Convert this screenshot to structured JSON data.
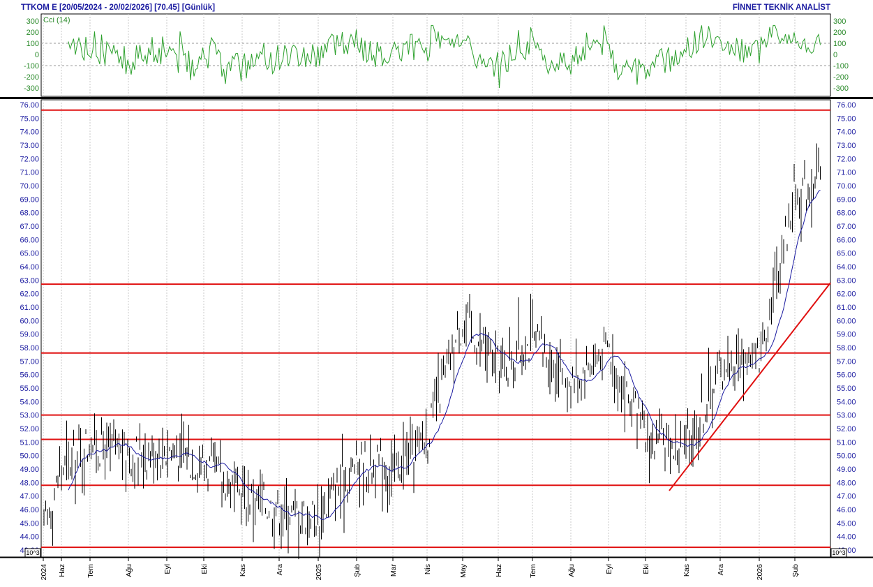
{
  "header": {
    "left": "TTKOM E  [20/05/2024 - 20/02/2026]  [70.45]  [Günlük]",
    "right": "FİNNET TEKNİK ANALİST"
  },
  "indicator": {
    "name": "Cci (14)",
    "color": "#2ca02c",
    "ticks": [
      "300",
      "200",
      "100",
      "0",
      "-100",
      "-200",
      "-300"
    ],
    "tick_values": [
      300,
      200,
      100,
      0,
      -100,
      -200,
      -300
    ],
    "dotted_levels": [
      100,
      -100
    ],
    "ylim": [
      -300,
      300
    ]
  },
  "price_axis": {
    "ticks": [
      "76.00",
      "75.00",
      "74.00",
      "73.00",
      "72.00",
      "71.00",
      "70.00",
      "69.00",
      "68.00",
      "67.00",
      "66.00",
      "65.00",
      "64.00",
      "63.00",
      "62.00",
      "61.00",
      "60.00",
      "59.00",
      "58.00",
      "57.00",
      "56.00",
      "55.00",
      "54.00",
      "53.00",
      "52.00",
      "51.00",
      "50.00",
      "49.00",
      "48.00",
      "47.00",
      "46.00",
      "45.00",
      "44.00",
      "43.00"
    ],
    "multiplier": "10^3"
  },
  "x_axis": {
    "labels": [
      "2024",
      "Haz",
      "Tem",
      "Ağu",
      "Eyl",
      "Eki",
      "Kas",
      "Ara",
      "2025",
      "Şub",
      "Mar",
      "Nis",
      "May",
      "Haz",
      "Tem",
      "Ağu",
      "Eyl",
      "Eki",
      "Kas",
      "Ara",
      "2026",
      "Şub"
    ]
  },
  "chart_data": {
    "type": "bar",
    "title": "TTKOM E  [20/05/2024 - 20/02/2026]  [70.45]  [Günlük]",
    "ylim": [
      43,
      76
    ],
    "last_close": 70.45,
    "horizontal_levels": [
      75.6,
      62.7,
      57.6,
      53.0,
      51.2,
      47.8,
      43.2
    ],
    "level_color": "#e01010",
    "trendline": {
      "from": {
        "date": "Eki 2025",
        "value": 47.4
      },
      "to": {
        "date": "Şub 2026",
        "value": 62.8
      }
    },
    "moving_average_color": "#1a1aa0",
    "price_path_months": [
      "May 2024",
      "Haz",
      "Tem",
      "Ağu",
      "Eyl",
      "Eki",
      "Kas",
      "Ara",
      "Oca 2025",
      "Şub",
      "Mar",
      "Nis",
      "May",
      "Haz",
      "Tem",
      "Ağu",
      "Eyl",
      "Eki",
      "Kas",
      "Ara",
      "Oca 2026",
      "Şub"
    ],
    "price_path_values": [
      44.5,
      49.0,
      51.0,
      50.0,
      50.5,
      49.5,
      47.0,
      46.0,
      45.5,
      49.5,
      49.0,
      51.5,
      60.0,
      56.5,
      58.5,
      55.5,
      58.0,
      51.0,
      50.5,
      56.5,
      57.5,
      69.5
    ],
    "grid": "vertical dotted"
  }
}
